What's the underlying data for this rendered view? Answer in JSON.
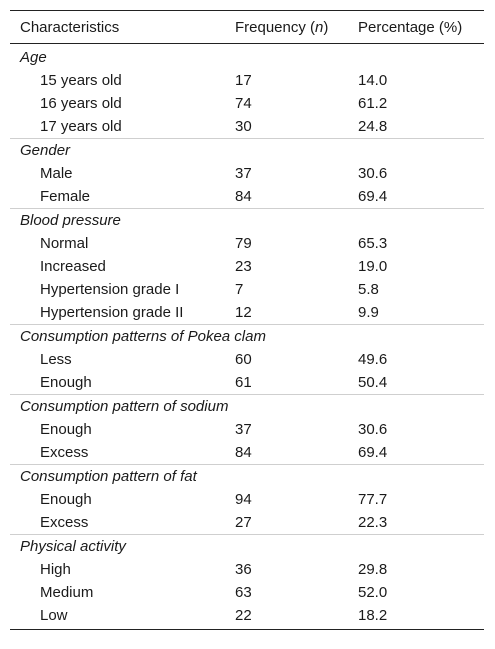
{
  "header": {
    "characteristics": "Characteristics",
    "frequency_prefix": "Frequency (",
    "frequency_n": "n",
    "frequency_suffix": ")",
    "percentage": "Percentage (%)"
  },
  "groups": [
    {
      "label": "Age",
      "rows": [
        {
          "label": "15 years old",
          "frequency": "17",
          "percentage": "14.0"
        },
        {
          "label": "16 years old",
          "frequency": "74",
          "percentage": "61.2"
        },
        {
          "label": "17 years old",
          "frequency": "30",
          "percentage": "24.8"
        }
      ]
    },
    {
      "label": "Gender",
      "rows": [
        {
          "label": "Male",
          "frequency": "37",
          "percentage": "30.6"
        },
        {
          "label": "Female",
          "frequency": "84",
          "percentage": "69.4"
        }
      ]
    },
    {
      "label": "Blood pressure",
      "rows": [
        {
          "label": "Normal",
          "frequency": "79",
          "percentage": "65.3"
        },
        {
          "label": "Increased",
          "frequency": "23",
          "percentage": "19.0"
        },
        {
          "label": "Hypertension grade I",
          "frequency": "7",
          "percentage": "5.8"
        },
        {
          "label": "Hypertension grade II",
          "frequency": "12",
          "percentage": "9.9"
        }
      ]
    },
    {
      "label": "Consumption patterns of Pokea clam",
      "rows": [
        {
          "label": "Less",
          "frequency": "60",
          "percentage": "49.6"
        },
        {
          "label": "Enough",
          "frequency": "61",
          "percentage": "50.4"
        }
      ]
    },
    {
      "label": "Consumption pattern of sodium",
      "rows": [
        {
          "label": "Enough",
          "frequency": "37",
          "percentage": "30.6"
        },
        {
          "label": "Excess",
          "frequency": "84",
          "percentage": "69.4"
        }
      ]
    },
    {
      "label": "Consumption pattern of fat",
      "rows": [
        {
          "label": "Enough",
          "frequency": "94",
          "percentage": "77.7"
        },
        {
          "label": "Excess",
          "frequency": "27",
          "percentage": "22.3"
        }
      ]
    },
    {
      "label": "Physical activity",
      "rows": [
        {
          "label": "High",
          "frequency": "36",
          "percentage": "29.8"
        },
        {
          "label": "Medium",
          "frequency": "63",
          "percentage": "52.0"
        },
        {
          "label": "Low",
          "frequency": "22",
          "percentage": "18.2"
        }
      ]
    }
  ]
}
